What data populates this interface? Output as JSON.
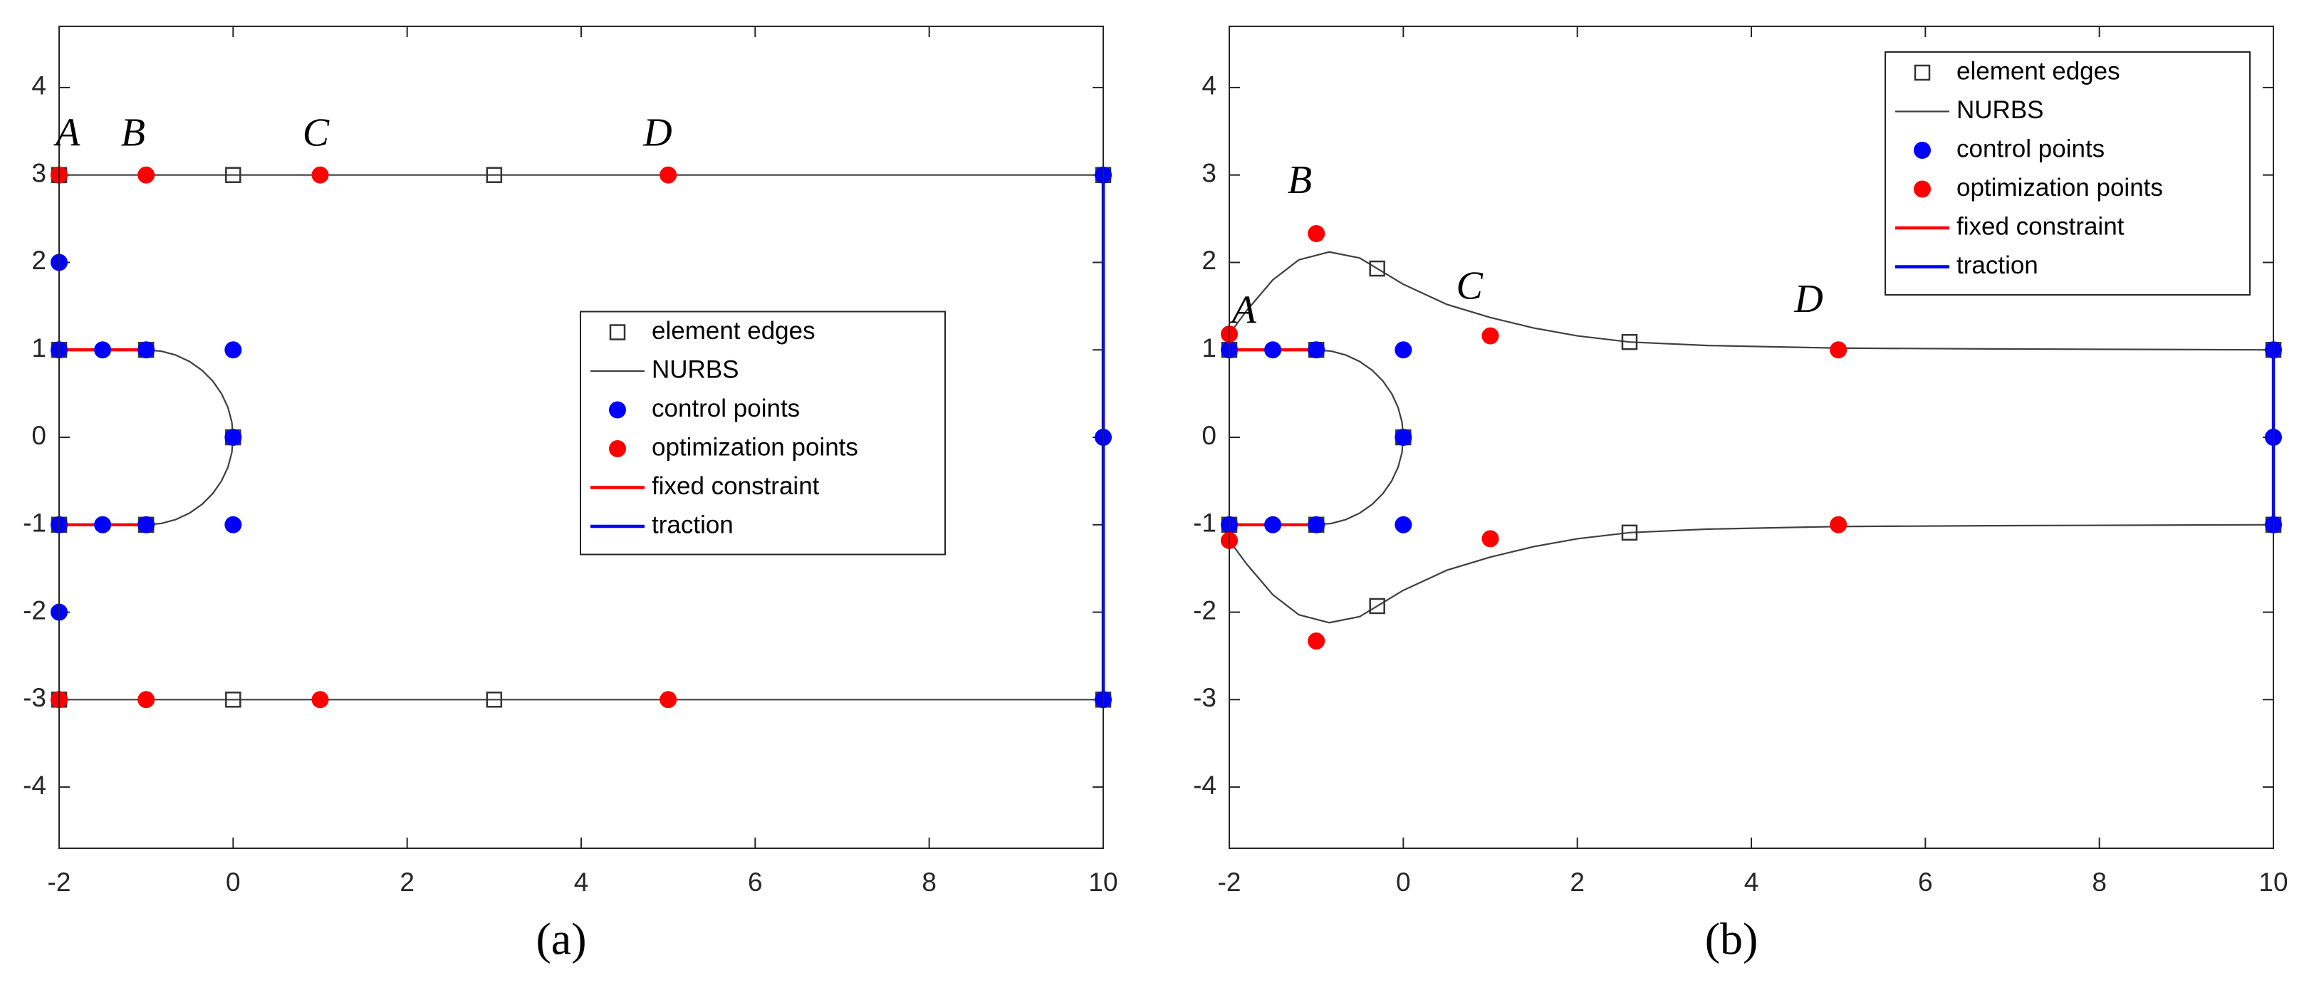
{
  "chart_data": [
    {
      "type": "line",
      "caption": "(a)",
      "xlim": [
        -2,
        10
      ],
      "ylim": [
        -4.7,
        4.7
      ],
      "xticks": [
        -2,
        0,
        2,
        4,
        6,
        8,
        10
      ],
      "yticks": [
        -4,
        -3,
        -2,
        -1,
        0,
        1,
        2,
        3,
        4
      ],
      "legend": "right",
      "annotations": [
        {
          "text": "A",
          "x": -1.9,
          "y": 3.44
        },
        {
          "text": "B",
          "x": -1.15,
          "y": 3.44
        },
        {
          "text": "C",
          "x": 0.95,
          "y": 3.44
        },
        {
          "text": "D",
          "x": 4.88,
          "y": 3.44
        }
      ],
      "series": [
        {
          "name": "element edges",
          "color": "#333333",
          "kind": "marker",
          "marker": "square",
          "x": [
            -2,
            0,
            3,
            10,
            -2,
            -1,
            0,
            -1,
            -2,
            -2,
            0,
            3,
            10
          ],
          "y": [
            3,
            3,
            3,
            3,
            1,
            1,
            0,
            -1,
            -1,
            -3,
            -3,
            -3,
            -3
          ]
        },
        {
          "name": "NURBS",
          "color": "#404040",
          "kind": "line",
          "linewidth": 1,
          "x": [
            -2,
            10,
            10,
            -2,
            -2,
            null,
            -2,
            -1,
            -0.826,
            -0.658,
            -0.5,
            -0.357,
            -0.234,
            -0.134,
            -0.06,
            -0.015,
            0,
            -0.015,
            -0.06,
            -0.134,
            -0.234,
            -0.357,
            -0.5,
            -0.658,
            -0.826,
            -1,
            -2
          ],
          "y": [
            3,
            3,
            -3,
            -3,
            3,
            null,
            1,
            1,
            0.985,
            0.94,
            0.866,
            0.766,
            0.643,
            0.5,
            0.342,
            0.174,
            0,
            -0.174,
            -0.342,
            -0.5,
            -0.643,
            -0.766,
            -0.866,
            -0.94,
            -0.985,
            -1,
            -1
          ]
        },
        {
          "name": "control points",
          "color": "#0000ff",
          "kind": "marker",
          "marker": "circle",
          "x": [
            -2,
            -2,
            -2,
            -1.5,
            -1,
            0,
            0,
            0,
            -1,
            -1.5,
            -2,
            -2,
            -2,
            10,
            10,
            10
          ],
          "y": [
            3,
            2,
            1,
            1,
            1,
            1,
            0,
            -1,
            -1,
            -1,
            -1,
            -2,
            -3,
            3,
            0,
            -3
          ]
        },
        {
          "name": "optimization points",
          "color": "#ff0000",
          "kind": "marker",
          "marker": "circle",
          "x": [
            -2,
            -1,
            1,
            5,
            -2,
            -1,
            1,
            5
          ],
          "y": [
            3,
            3,
            3,
            3,
            -3,
            -3,
            -3,
            -3
          ]
        },
        {
          "name": "fixed constraint",
          "color": "#ff0000",
          "kind": "line",
          "linewidth": 2,
          "x": [
            -2,
            -1,
            null,
            -2,
            -1
          ],
          "y": [
            1,
            1,
            null,
            -1,
            -1
          ]
        },
        {
          "name": "traction",
          "color": "#0000ff",
          "kind": "line",
          "linewidth": 2,
          "x": [
            10,
            10
          ],
          "y": [
            3,
            -3
          ]
        }
      ]
    },
    {
      "type": "line",
      "caption": "(b)",
      "xlim": [
        -2,
        10
      ],
      "ylim": [
        -4.7,
        4.7
      ],
      "xticks": [
        -2,
        0,
        2,
        4,
        6,
        8,
        10
      ],
      "yticks": [
        -4,
        -3,
        -2,
        -1,
        0,
        1,
        2,
        3,
        4
      ],
      "legend": "upper right",
      "annotations": [
        {
          "text": "A",
          "x": -1.83,
          "y": 1.41
        },
        {
          "text": "B",
          "x": -1.19,
          "y": 2.9
        },
        {
          "text": "C",
          "x": 0.76,
          "y": 1.69
        },
        {
          "text": "D",
          "x": 4.66,
          "y": 1.54
        }
      ],
      "series": [
        {
          "name": "element edges",
          "color": "#333333",
          "kind": "marker",
          "marker": "square",
          "x": [
            -2,
            -1,
            0,
            -1,
            -2,
            -0.3,
            2.6,
            10,
            -0.3,
            2.6,
            10
          ],
          "y": [
            1,
            1,
            0,
            -1,
            -1,
            1.93,
            1.09,
            1,
            -1.93,
            -1.09,
            -1
          ]
        },
        {
          "name": "NURBS",
          "color": "#404040",
          "kind": "line",
          "linewidth": 1,
          "x": [
            -2,
            -1.8,
            -1.5,
            -1.2,
            -0.85,
            -0.5,
            -0.3,
            0,
            0.5,
            1,
            1.5,
            2,
            2.6,
            3.5,
            5,
            7,
            10,
            null,
            -2,
            -1.8,
            -1.5,
            -1.2,
            -0.85,
            -0.5,
            -0.3,
            0,
            0.5,
            1,
            1.5,
            2,
            2.6,
            3.5,
            5,
            7,
            10,
            null,
            -2,
            -2,
            null,
            -2,
            -1,
            -0.826,
            -0.658,
            -0.5,
            -0.357,
            -0.234,
            -0.134,
            -0.06,
            -0.015,
            0,
            -0.015,
            -0.06,
            -0.134,
            -0.234,
            -0.357,
            -0.5,
            -0.658,
            -0.826,
            -1,
            -2
          ],
          "y": [
            1.18,
            1.45,
            1.8,
            2.03,
            2.12,
            2.05,
            1.93,
            1.75,
            1.52,
            1.37,
            1.25,
            1.16,
            1.09,
            1.05,
            1.02,
            1.01,
            1,
            null,
            -1.18,
            -1.45,
            -1.8,
            -2.03,
            -2.12,
            -2.05,
            -1.93,
            -1.75,
            -1.52,
            -1.37,
            -1.25,
            -1.16,
            -1.09,
            -1.05,
            -1.02,
            -1.01,
            -1,
            null,
            1.18,
            -1.18,
            null,
            1,
            1,
            0.985,
            0.94,
            0.866,
            0.766,
            0.643,
            0.5,
            0.342,
            0.174,
            0,
            -0.174,
            -0.342,
            -0.5,
            -0.643,
            -0.766,
            -0.866,
            -0.94,
            -0.985,
            -1,
            -1
          ]
        },
        {
          "name": "control points",
          "color": "#0000ff",
          "kind": "marker",
          "marker": "circle",
          "x": [
            -2,
            -1.5,
            -1,
            0,
            0,
            0,
            -1,
            -1.5,
            -2,
            10,
            10,
            10
          ],
          "y": [
            1,
            1,
            1,
            1,
            0,
            -1,
            -1,
            -1,
            -1,
            1,
            0,
            -1
          ]
        },
        {
          "name": "optimization points",
          "color": "#ff0000",
          "kind": "marker",
          "marker": "circle",
          "x": [
            -2,
            -1,
            1,
            5,
            -2,
            -1,
            1,
            5
          ],
          "y": [
            1.18,
            2.33,
            1.16,
            1,
            -1.18,
            -2.33,
            -1.16,
            -1
          ]
        },
        {
          "name": "fixed constraint",
          "color": "#ff0000",
          "kind": "line",
          "linewidth": 2,
          "x": [
            -2,
            -1,
            null,
            -2,
            -1
          ],
          "y": [
            1,
            1,
            null,
            -1,
            -1
          ]
        },
        {
          "name": "traction",
          "color": "#0000ff",
          "kind": "line",
          "linewidth": 2,
          "x": [
            10,
            10
          ],
          "y": [
            1,
            -1
          ]
        }
      ]
    }
  ]
}
